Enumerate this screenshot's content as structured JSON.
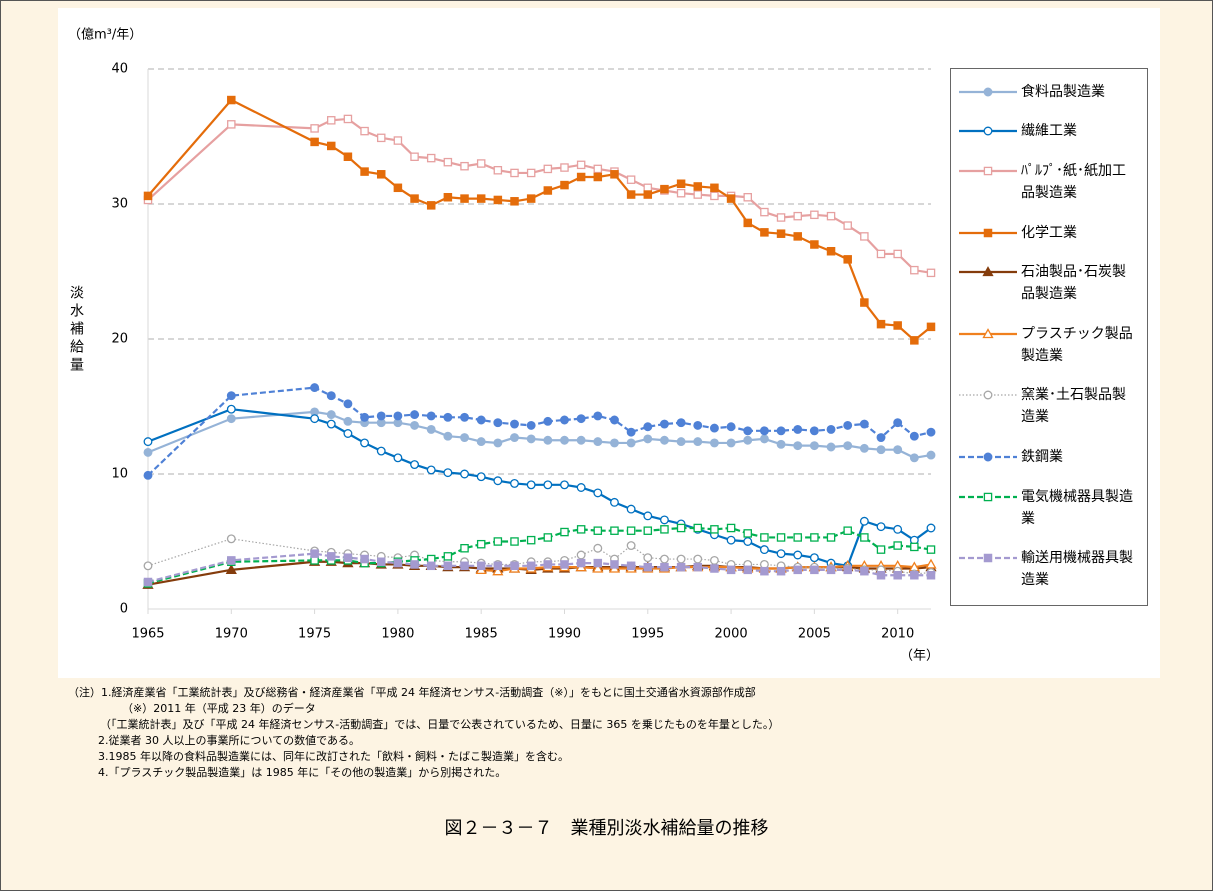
{
  "chart_data": {
    "type": "line",
    "y_unit": "（億m³/年）",
    "y_label": "淡水補給量",
    "x_unit": "（年）",
    "x": [
      1965,
      1970,
      1975,
      1976,
      1977,
      1978,
      1979,
      1980,
      1981,
      1982,
      1983,
      1984,
      1985,
      1986,
      1987,
      1988,
      1989,
      1990,
      1991,
      1992,
      1993,
      1994,
      1995,
      1996,
      1997,
      1998,
      1999,
      2000,
      2001,
      2002,
      2003,
      2004,
      2005,
      2006,
      2007,
      2008,
      2009,
      2010,
      2011,
      2012
    ],
    "xlim": [
      1965,
      2012
    ],
    "xticks": [
      1965,
      1970,
      1975,
      1980,
      1985,
      1990,
      1995,
      2000,
      2005,
      2010
    ],
    "ylim": [
      0,
      40
    ],
    "yticks": [
      0,
      10,
      20,
      30,
      40
    ],
    "grid": true,
    "legend": "right",
    "series": [
      {
        "name": "食料品製造業",
        "color": "#95b3d7",
        "marker": "circle",
        "filled": true,
        "dash": "solid",
        "values": [
          11.6,
          14.1,
          14.6,
          14.4,
          13.9,
          13.8,
          13.8,
          13.8,
          13.6,
          13.3,
          12.8,
          12.7,
          12.4,
          12.3,
          12.7,
          12.6,
          12.5,
          12.5,
          12.5,
          12.4,
          12.3,
          12.3,
          12.6,
          12.5,
          12.4,
          12.4,
          12.3,
          12.3,
          12.5,
          12.6,
          12.2,
          12.1,
          12.1,
          12.0,
          12.1,
          11.9,
          11.8,
          11.8,
          11.2,
          11.4
        ]
      },
      {
        "name": "繊維工業",
        "color": "#0070c0",
        "marker": "circle",
        "filled": false,
        "dash": "solid",
        "values": [
          12.4,
          14.8,
          14.1,
          13.7,
          13.0,
          12.3,
          11.7,
          11.2,
          10.7,
          10.3,
          10.1,
          10.0,
          9.8,
          9.5,
          9.3,
          9.2,
          9.2,
          9.2,
          9.0,
          8.6,
          7.9,
          7.4,
          6.9,
          6.6,
          6.3,
          5.9,
          5.5,
          5.1,
          5.0,
          4.4,
          4.1,
          4.0,
          3.8,
          3.4,
          3.2,
          6.5,
          6.1,
          5.9,
          5.1,
          6.0
        ]
      },
      {
        "name": "ﾊﾟﾙﾌﾟ･紙･紙加工品製造業",
        "color": "#e6a0a0",
        "marker": "square",
        "filled": false,
        "dash": "solid",
        "values": [
          30.3,
          35.9,
          35.6,
          36.2,
          36.3,
          35.4,
          34.9,
          34.7,
          33.5,
          33.4,
          33.1,
          32.8,
          33.0,
          32.5,
          32.3,
          32.3,
          32.6,
          32.7,
          32.9,
          32.6,
          32.4,
          31.8,
          31.2,
          31.0,
          30.8,
          30.7,
          30.6,
          30.6,
          30.5,
          29.4,
          29.0,
          29.1,
          29.2,
          29.1,
          28.4,
          27.6,
          26.3,
          26.3,
          25.1,
          24.9
        ]
      },
      {
        "name": "化学工業",
        "color": "#e46c0a",
        "marker": "square",
        "filled": true,
        "dash": "solid",
        "values": [
          30.6,
          37.7,
          34.6,
          34.3,
          33.5,
          32.4,
          32.2,
          31.2,
          30.4,
          29.9,
          30.5,
          30.4,
          30.4,
          30.3,
          30.2,
          30.4,
          31.0,
          31.4,
          32.0,
          32.0,
          32.2,
          30.7,
          30.7,
          31.1,
          31.5,
          31.3,
          31.2,
          30.4,
          28.6,
          27.9,
          27.8,
          27.6,
          27.0,
          26.5,
          25.9,
          22.7,
          21.1,
          21.0,
          19.9,
          20.9
        ]
      },
      {
        "name": "石油製品･石炭製品製造業",
        "color": "#843c0c",
        "marker": "triangle",
        "filled": true,
        "dash": "solid",
        "values": [
          1.8,
          2.9,
          3.5,
          3.5,
          3.4,
          3.4,
          3.3,
          3.3,
          3.2,
          3.2,
          3.1,
          3.1,
          3.0,
          3.0,
          3.0,
          2.9,
          3.0,
          3.0,
          3.1,
          3.1,
          3.1,
          3.1,
          3.1,
          3.1,
          3.1,
          3.2,
          3.2,
          3.1,
          3.1,
          3.0,
          3.0,
          3.1,
          3.1,
          3.1,
          3.1,
          3.0,
          3.0,
          3.0,
          3.0,
          3.1
        ]
      },
      {
        "name": "プラスチック製品製造業",
        "color": "#f0801e",
        "marker": "triangle",
        "filled": false,
        "dash": "solid",
        "values": [
          null,
          null,
          null,
          null,
          null,
          null,
          null,
          null,
          null,
          null,
          null,
          null,
          2.9,
          2.8,
          3.0,
          3.0,
          3.1,
          3.1,
          3.1,
          3.0,
          3.0,
          3.0,
          3.0,
          3.0,
          3.1,
          3.1,
          3.1,
          3.1,
          3.0,
          3.0,
          3.0,
          3.1,
          3.1,
          3.1,
          3.2,
          3.2,
          3.2,
          3.2,
          3.1,
          3.3
        ]
      },
      {
        "name": "窯業･土石製品製造業",
        "color": "#a6a6a6",
        "marker": "circle",
        "filled": false,
        "dash": "dotted",
        "values": [
          3.2,
          5.2,
          4.3,
          4.2,
          4.1,
          4.0,
          3.9,
          3.8,
          4.0,
          3.6,
          3.5,
          3.5,
          3.4,
          3.3,
          3.3,
          3.5,
          3.5,
          3.6,
          4.0,
          4.5,
          3.7,
          4.7,
          3.8,
          3.7,
          3.7,
          3.7,
          3.6,
          3.3,
          3.3,
          3.3,
          3.2,
          3.1,
          3.1,
          3.0,
          3.0,
          2.9,
          2.9,
          2.8,
          2.6,
          2.7
        ]
      },
      {
        "name": "鉄鋼業",
        "color": "#4f81d6",
        "marker": "circle",
        "filled": true,
        "dash": "dashed",
        "values": [
          9.9,
          15.8,
          16.4,
          15.8,
          15.2,
          14.2,
          14.3,
          14.3,
          14.4,
          14.3,
          14.2,
          14.2,
          14.0,
          13.8,
          13.7,
          13.6,
          13.9,
          14.0,
          14.1,
          14.3,
          14.0,
          13.1,
          13.5,
          13.7,
          13.8,
          13.6,
          13.4,
          13.5,
          13.2,
          13.2,
          13.2,
          13.3,
          13.2,
          13.3,
          13.6,
          13.7,
          12.7,
          13.8,
          12.8,
          13.1
        ]
      },
      {
        "name": "電気機械器具製造業",
        "color": "#00b050",
        "marker": "square",
        "filled": false,
        "dash": "dashed",
        "values": [
          1.9,
          3.5,
          3.6,
          3.6,
          3.6,
          3.4,
          3.4,
          3.5,
          3.6,
          3.7,
          3.9,
          4.5,
          4.8,
          5.0,
          5.0,
          5.1,
          5.3,
          5.7,
          5.9,
          5.8,
          5.8,
          5.8,
          5.8,
          5.9,
          6.0,
          6.0,
          5.9,
          6.0,
          5.6,
          5.3,
          5.3,
          5.3,
          5.3,
          5.3,
          5.8,
          5.3,
          4.4,
          4.7,
          4.6,
          4.4
        ]
      },
      {
        "name": "輸送用機械器具製造業",
        "color": "#a49ad0",
        "marker": "square",
        "filled": true,
        "dash": "dashed",
        "values": [
          2.0,
          3.6,
          4.1,
          3.9,
          3.8,
          3.7,
          3.5,
          3.4,
          3.3,
          3.2,
          3.2,
          3.2,
          3.2,
          3.2,
          3.2,
          3.2,
          3.3,
          3.3,
          3.4,
          3.4,
          3.3,
          3.2,
          3.1,
          3.1,
          3.1,
          3.1,
          3.0,
          2.9,
          2.9,
          2.8,
          2.8,
          2.9,
          2.9,
          2.9,
          2.9,
          2.8,
          2.5,
          2.5,
          2.5,
          2.5
        ]
      }
    ],
    "notes": [
      "（注）1.経済産業省「工業統計表」及び総務省・経済産業省「平成 24 年経済センサス-活動調査（※）」をもとに国土交通省水資源部作成部",
      "（※）2011 年（平成 23 年）のデータ",
      "（「工業統計表」及び「平成 24 年経済センサス-活動調査」では、日量で公表されているため、日量に 365 を乗じたものを年量とした。）",
      "2.従業者 30 人以上の事業所についての数値である。",
      "3.1985 年以降の食料品製造業には、同年に改訂された「飲料・飼料・たばこ製造業」を含む。",
      "4.「プラスチック製品製造業」は 1985 年に「その他の製造業」から別掲された。"
    ],
    "caption": "図２－３－７　業種別淡水補給量の推移"
  }
}
